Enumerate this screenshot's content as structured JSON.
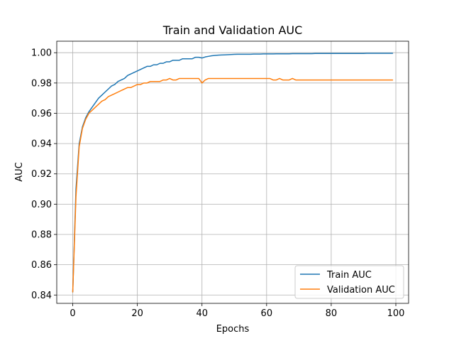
{
  "chart_data": {
    "type": "line",
    "title": "Train and Validation AUC",
    "xlabel": "Epochs",
    "ylabel": "AUC",
    "xlim": [
      -4.95,
      103.95
    ],
    "ylim": [
      0.8345,
      1.0076
    ],
    "xticks": [
      0,
      20,
      40,
      60,
      80,
      100
    ],
    "yticks": [
      0.84,
      0.86,
      0.88,
      0.9,
      0.92,
      0.94,
      0.96,
      0.98,
      1.0
    ],
    "xtick_labels": [
      "0",
      "20",
      "40",
      "60",
      "80",
      "100"
    ],
    "ytick_labels": [
      "0.84",
      "0.86",
      "0.88",
      "0.90",
      "0.92",
      "0.94",
      "0.96",
      "0.98",
      "1.00"
    ],
    "grid": true,
    "legend_position": "lower-right",
    "series": [
      {
        "name": "Train AUC",
        "color": "#1f77b4",
        "x": [
          0,
          1,
          2,
          3,
          4,
          5,
          6,
          7,
          8,
          9,
          10,
          11,
          12,
          13,
          14,
          15,
          16,
          17,
          18,
          19,
          20,
          21,
          22,
          23,
          24,
          25,
          26,
          27,
          28,
          29,
          30,
          31,
          32,
          33,
          34,
          35,
          36,
          37,
          38,
          39,
          40,
          41,
          42,
          43,
          44,
          45,
          46,
          47,
          48,
          49,
          50,
          51,
          52,
          53,
          54,
          55,
          56,
          57,
          58,
          59,
          60,
          61,
          62,
          63,
          64,
          65,
          66,
          67,
          68,
          69,
          70,
          71,
          72,
          73,
          74,
          75,
          76,
          77,
          78,
          79,
          80,
          81,
          82,
          83,
          84,
          85,
          86,
          87,
          88,
          89,
          90,
          91,
          92,
          93,
          94,
          95,
          96,
          97,
          98,
          99
        ],
        "y": [
          0.842,
          0.91,
          0.94,
          0.951,
          0.957,
          0.961,
          0.964,
          0.967,
          0.97,
          0.972,
          0.974,
          0.976,
          0.978,
          0.979,
          0.981,
          0.982,
          0.983,
          0.985,
          0.986,
          0.987,
          0.988,
          0.989,
          0.99,
          0.991,
          0.991,
          0.992,
          0.992,
          0.993,
          0.993,
          0.994,
          0.994,
          0.995,
          0.995,
          0.995,
          0.996,
          0.996,
          0.996,
          0.996,
          0.997,
          0.997,
          0.9965,
          0.9972,
          0.9976,
          0.998,
          0.9982,
          0.9984,
          0.9985,
          0.9986,
          0.9987,
          0.9988,
          0.9989,
          0.999,
          0.999,
          0.999,
          0.999,
          0.999,
          0.9991,
          0.9991,
          0.9991,
          0.9992,
          0.9992,
          0.9992,
          0.9992,
          0.9993,
          0.9993,
          0.9993,
          0.9993,
          0.9993,
          0.9994,
          0.9994,
          0.9994,
          0.9994,
          0.9994,
          0.9994,
          0.9994,
          0.9995,
          0.9995,
          0.9995,
          0.9995,
          0.9995,
          0.9995,
          0.9995,
          0.9995,
          0.9995,
          0.9995,
          0.9995,
          0.9995,
          0.9995,
          0.9995,
          0.9995,
          0.9995,
          0.9996,
          0.9996,
          0.9996,
          0.9996,
          0.9996,
          0.9996,
          0.9996,
          0.9996,
          0.9996
        ]
      },
      {
        "name": "Validation AUC",
        "color": "#ff7f0e",
        "x": [
          0,
          1,
          2,
          3,
          4,
          5,
          6,
          7,
          8,
          9,
          10,
          11,
          12,
          13,
          14,
          15,
          16,
          17,
          18,
          19,
          20,
          21,
          22,
          23,
          24,
          25,
          26,
          27,
          28,
          29,
          30,
          31,
          32,
          33,
          34,
          35,
          36,
          37,
          38,
          39,
          40,
          41,
          42,
          43,
          44,
          45,
          46,
          47,
          48,
          49,
          50,
          51,
          52,
          53,
          54,
          55,
          56,
          57,
          58,
          59,
          60,
          61,
          62,
          63,
          64,
          65,
          66,
          67,
          68,
          69,
          70,
          71,
          72,
          73,
          74,
          75,
          76,
          77,
          78,
          79,
          80,
          81,
          82,
          83,
          84,
          85,
          86,
          87,
          88,
          89,
          90,
          91,
          92,
          93,
          94,
          95,
          96,
          97,
          98,
          99
        ],
        "y": [
          0.842,
          0.905,
          0.938,
          0.95,
          0.956,
          0.96,
          0.962,
          0.964,
          0.966,
          0.968,
          0.969,
          0.971,
          0.972,
          0.973,
          0.974,
          0.975,
          0.976,
          0.977,
          0.977,
          0.978,
          0.979,
          0.979,
          0.98,
          0.98,
          0.981,
          0.981,
          0.981,
          0.981,
          0.982,
          0.982,
          0.983,
          0.982,
          0.982,
          0.983,
          0.983,
          0.983,
          0.983,
          0.983,
          0.983,
          0.983,
          0.98,
          0.982,
          0.983,
          0.983,
          0.983,
          0.983,
          0.983,
          0.983,
          0.983,
          0.983,
          0.983,
          0.983,
          0.983,
          0.983,
          0.983,
          0.983,
          0.983,
          0.983,
          0.983,
          0.983,
          0.983,
          0.983,
          0.982,
          0.982,
          0.983,
          0.982,
          0.982,
          0.982,
          0.983,
          0.982,
          0.982,
          0.982,
          0.982,
          0.982,
          0.982,
          0.982,
          0.982,
          0.982,
          0.982,
          0.982,
          0.982,
          0.982,
          0.982,
          0.982,
          0.982,
          0.982,
          0.982,
          0.982,
          0.982,
          0.982,
          0.982,
          0.982,
          0.982,
          0.982,
          0.982,
          0.982,
          0.982,
          0.982,
          0.982,
          0.982
        ]
      }
    ]
  }
}
